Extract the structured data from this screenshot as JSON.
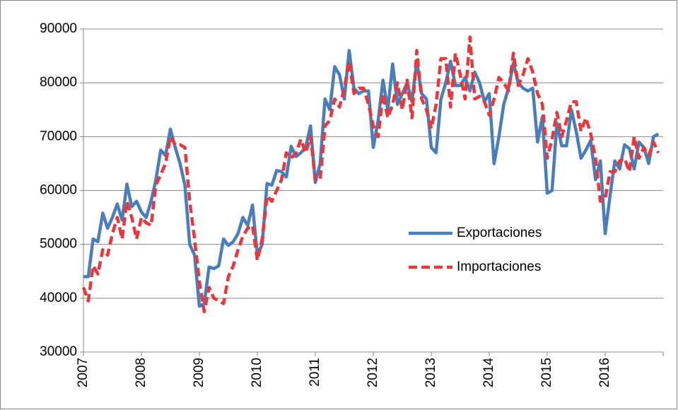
{
  "chart_data": {
    "type": "line",
    "categories": [
      "2007",
      null,
      null,
      null,
      null,
      null,
      null,
      null,
      null,
      null,
      null,
      null,
      "2008",
      null,
      null,
      null,
      null,
      null,
      null,
      null,
      null,
      null,
      null,
      null,
      "2009",
      null,
      null,
      null,
      null,
      null,
      null,
      null,
      null,
      null,
      null,
      null,
      "2010",
      null,
      null,
      null,
      null,
      null,
      null,
      null,
      null,
      null,
      null,
      null,
      "2011",
      null,
      null,
      null,
      null,
      null,
      null,
      null,
      null,
      null,
      null,
      null,
      "2012",
      null,
      null,
      null,
      null,
      null,
      null,
      null,
      null,
      null,
      null,
      null,
      "2013",
      null,
      null,
      null,
      null,
      null,
      null,
      null,
      null,
      null,
      null,
      null,
      "2014",
      null,
      null,
      null,
      null,
      null,
      null,
      null,
      null,
      null,
      null,
      null,
      "2015",
      null,
      null,
      null,
      null,
      null,
      null,
      null,
      null,
      null,
      null,
      null,
      "2016",
      null,
      null,
      null,
      null,
      null,
      null,
      null,
      null,
      null,
      null,
      null
    ],
    "series": [
      {
        "name": "Exportaciones",
        "color": "#4a7ebb",
        "line_style": "solid",
        "values": [
          44000,
          44000,
          51000,
          50500,
          55800,
          53000,
          55000,
          57500,
          54500,
          61200,
          57000,
          58000,
          56000,
          55000,
          58000,
          62000,
          67500,
          66500,
          71400,
          68000,
          65000,
          61000,
          50000,
          48000,
          38500,
          39000,
          45800,
          45500,
          46000,
          51000,
          49800,
          50500,
          52000,
          55000,
          53500,
          57300,
          48000,
          50000,
          61300,
          61000,
          63700,
          63500,
          62500,
          68200,
          66300,
          67000,
          68000,
          72000,
          61500,
          65000,
          77000,
          75000,
          83000,
          81500,
          77000,
          86000,
          79000,
          78000,
          78500,
          78500,
          68000,
          73000,
          80500,
          75000,
          83500,
          76000,
          78000,
          80000,
          76500,
          84000,
          78000,
          77000,
          68000,
          67000,
          77000,
          80000,
          84000,
          79500,
          79500,
          81000,
          78500,
          82000,
          80000,
          76500,
          78000,
          65000,
          70000,
          76000,
          79000,
          83700,
          80000,
          79000,
          78500,
          79000,
          69000,
          73700,
          59500,
          60000,
          72500,
          68300,
          68300,
          75000,
          71000,
          66000,
          67500,
          69300,
          62000,
          65500,
          52000,
          59000,
          65500,
          64000,
          68500,
          67800,
          64000,
          69000,
          68000,
          65000,
          70000,
          70500
        ]
      },
      {
        "name": "Importaciones",
        "color": "#e8383d",
        "line_style": "dashed",
        "values": [
          42000,
          39500,
          46000,
          44500,
          49000,
          48000,
          52000,
          55000,
          51000,
          58000,
          55000,
          51000,
          55000,
          54000,
          53500,
          61000,
          63000,
          65000,
          70000,
          68500,
          68500,
          68000,
          58000,
          51000,
          43000,
          37500,
          42000,
          40000,
          39500,
          39000,
          44000,
          46000,
          49000,
          51500,
          53000,
          53500,
          47000,
          51000,
          59000,
          58000,
          60000,
          62000,
          67000,
          66000,
          67000,
          69500,
          67000,
          70000,
          62000,
          62000,
          72000,
          73000,
          77000,
          75500,
          79000,
          84000,
          78000,
          79000,
          79000,
          76000,
          72000,
          70000,
          78000,
          73500,
          76000,
          80000,
          75000,
          80500,
          73500,
          86000,
          77000,
          75000,
          71500,
          76000,
          84500,
          84500,
          75500,
          85500,
          81500,
          77000,
          88500,
          77000,
          77500,
          76500,
          74000,
          77000,
          81000,
          80000,
          78500,
          85500,
          79500,
          81500,
          84500,
          82000,
          78000,
          76000,
          66000,
          69500,
          74500,
          70000,
          73000,
          76500,
          76500,
          71000,
          73500,
          70500,
          66000,
          58000,
          58500,
          63500,
          63500,
          65500,
          66000,
          63500,
          70000,
          66000,
          68000,
          66500,
          69000,
          67000
        ]
      }
    ],
    "ylim": [
      30000,
      90000
    ],
    "yticks": [
      30000,
      40000,
      50000,
      60000,
      70000,
      80000,
      90000
    ],
    "grid": true,
    "legend": "right"
  }
}
